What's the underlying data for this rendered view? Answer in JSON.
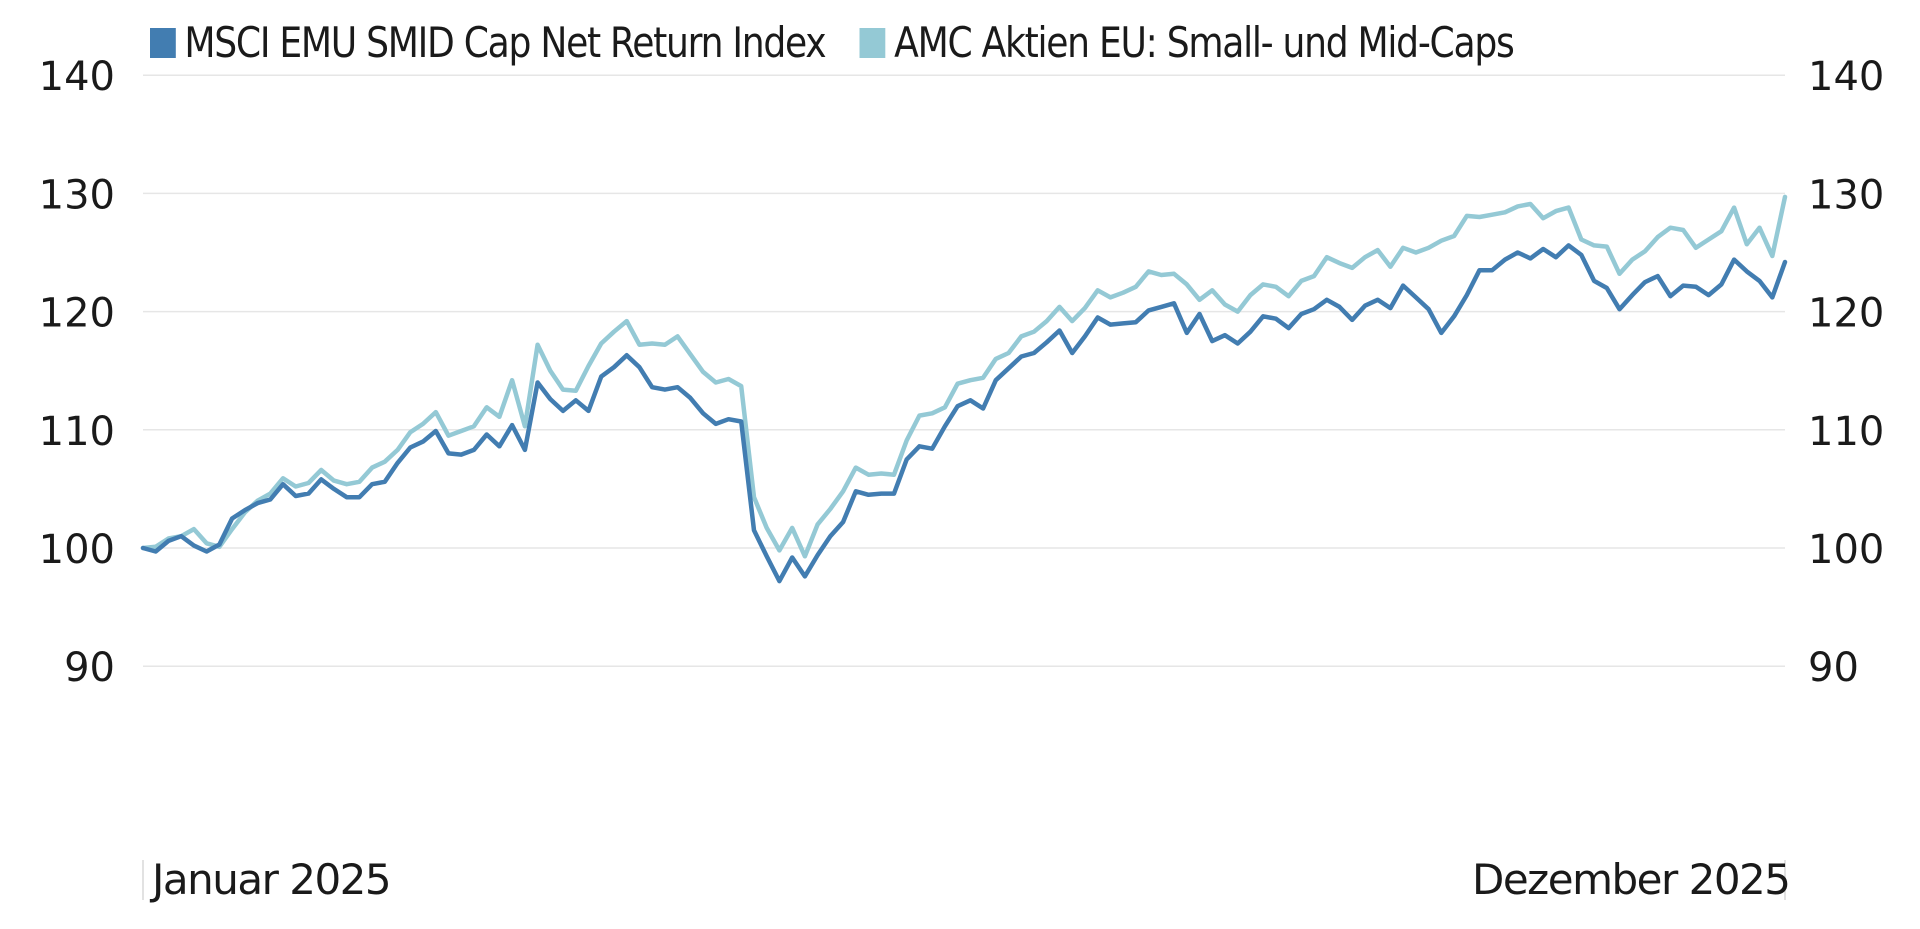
{
  "legend": [
    {
      "label": "MSCI EMU SMID Cap Net Return Index",
      "color": "#427DB1"
    },
    {
      "label": "AMC Aktien EU: Small- und Mid-Caps",
      "color": "#94C9D5"
    }
  ],
  "x_axis": {
    "start_label": "Januar 2025",
    "end_label": "Dezember 2025"
  },
  "y_axis": {
    "ticks": [
      90,
      100,
      110,
      120,
      130,
      140
    ]
  },
  "chart_data": {
    "type": "line",
    "title": "",
    "xlabel": "",
    "ylabel": "",
    "ylim": [
      90,
      140
    ],
    "grid": true,
    "legend_position": "top",
    "x_range": [
      "Januar 2025",
      "Dezember 2025"
    ],
    "x": [
      0,
      1,
      2,
      3,
      4,
      5,
      6,
      7,
      8,
      9,
      10,
      11,
      12,
      13,
      14,
      15,
      16,
      17,
      18,
      19,
      20,
      21,
      22,
      23,
      24,
      25,
      26,
      27,
      28,
      29,
      30,
      31,
      32,
      33,
      34,
      35,
      36,
      37,
      38,
      39,
      40,
      41,
      42,
      43,
      44,
      45,
      46,
      47,
      48,
      49,
      50,
      51,
      52,
      53,
      54,
      55,
      56,
      57,
      58,
      59,
      60,
      61,
      62,
      63,
      64,
      65,
      66,
      67,
      68,
      69,
      70,
      71,
      72,
      73,
      74,
      75,
      76,
      77,
      78,
      79,
      80,
      81,
      82,
      83,
      84,
      85,
      86,
      87,
      88,
      89,
      90,
      91,
      92,
      93,
      94,
      95,
      96,
      97,
      98,
      99,
      100,
      101,
      102,
      103,
      104,
      105,
      106,
      107,
      108,
      109,
      110,
      111,
      112,
      113,
      114,
      115,
      116,
      117,
      118,
      119,
      120,
      121,
      122,
      123,
      124,
      125,
      126,
      127,
      128,
      129
    ],
    "series": [
      {
        "name": "MSCI EMU SMID Cap Net Return Index",
        "color": "#427DB1",
        "values": [
          100.0,
          99.7,
          100.6,
          101.0,
          100.2,
          99.7,
          100.3,
          102.5,
          103.2,
          103.8,
          104.1,
          105.4,
          104.4,
          104.6,
          105.8,
          105.0,
          104.3,
          104.3,
          105.4,
          105.6,
          107.2,
          108.5,
          109.0,
          109.9,
          108.0,
          107.9,
          108.3,
          109.6,
          108.6,
          110.4,
          108.3,
          114.0,
          112.6,
          111.6,
          112.5,
          111.6,
          114.5,
          115.3,
          116.3,
          115.3,
          113.6,
          113.4,
          113.6,
          112.7,
          111.4,
          110.5,
          110.9,
          110.7,
          101.5,
          99.3,
          97.2,
          99.2,
          97.6,
          99.4,
          101.0,
          102.2,
          104.8,
          104.5,
          104.6,
          104.6,
          107.5,
          108.6,
          108.4,
          110.3,
          112.0,
          112.5,
          111.8,
          114.2,
          115.2,
          116.2,
          116.5,
          117.4,
          118.4,
          116.5,
          117.9,
          119.5,
          118.9,
          119.0,
          119.1,
          120.1,
          120.4,
          120.7,
          118.2,
          119.8,
          117.5,
          118.0,
          117.3,
          118.3,
          119.6,
          119.4,
          118.6,
          119.8,
          120.2,
          121.0,
          120.4,
          119.3,
          120.5,
          121.0,
          120.3,
          122.2,
          121.2,
          120.2,
          118.2,
          119.6,
          121.4,
          123.5,
          123.5,
          124.4,
          125.0,
          124.5,
          125.3,
          124.6,
          125.6,
          124.8,
          122.6,
          122.0,
          120.2,
          121.4,
          122.5,
          123.0,
          121.3,
          122.2,
          122.1,
          121.4,
          122.3,
          124.4,
          123.4,
          122.6,
          121.2,
          124.2
        ]
      },
      {
        "name": "AMC Aktien EU: Small- und Mid-Caps",
        "color": "#94C9D5",
        "values": [
          100.0,
          100.1,
          100.8,
          101.0,
          101.6,
          100.4,
          100.1,
          101.6,
          103.0,
          104.0,
          104.6,
          105.9,
          105.2,
          105.5,
          106.6,
          105.7,
          105.4,
          105.6,
          106.8,
          107.3,
          108.3,
          109.8,
          110.5,
          111.5,
          109.5,
          109.9,
          110.3,
          111.9,
          111.1,
          114.2,
          110.3,
          117.2,
          115.0,
          113.4,
          113.3,
          115.4,
          117.3,
          118.3,
          119.2,
          117.2,
          117.3,
          117.2,
          117.9,
          116.4,
          114.9,
          114.0,
          114.3,
          113.7,
          104.3,
          101.7,
          99.8,
          101.7,
          99.3,
          102.0,
          103.3,
          104.8,
          106.8,
          106.2,
          106.3,
          106.2,
          109.1,
          111.2,
          111.4,
          111.9,
          113.9,
          114.2,
          114.4,
          116.0,
          116.5,
          117.9,
          118.3,
          119.2,
          120.4,
          119.2,
          120.3,
          121.8,
          121.2,
          121.6,
          122.1,
          123.4,
          123.1,
          123.2,
          122.3,
          121.0,
          121.8,
          120.6,
          120.0,
          121.4,
          122.3,
          122.1,
          121.3,
          122.6,
          123.0,
          124.6,
          124.1,
          123.7,
          124.6,
          125.2,
          123.8,
          125.4,
          125.0,
          125.4,
          126.0,
          126.4,
          128.1,
          128.0,
          128.2,
          128.4,
          128.9,
          129.1,
          127.9,
          128.5,
          128.8,
          126.1,
          125.6,
          125.5,
          123.2,
          124.4,
          125.1,
          126.3,
          127.1,
          126.9,
          125.4,
          126.1,
          126.8,
          128.8,
          125.7,
          127.1,
          124.7,
          129.7
        ]
      }
    ]
  }
}
